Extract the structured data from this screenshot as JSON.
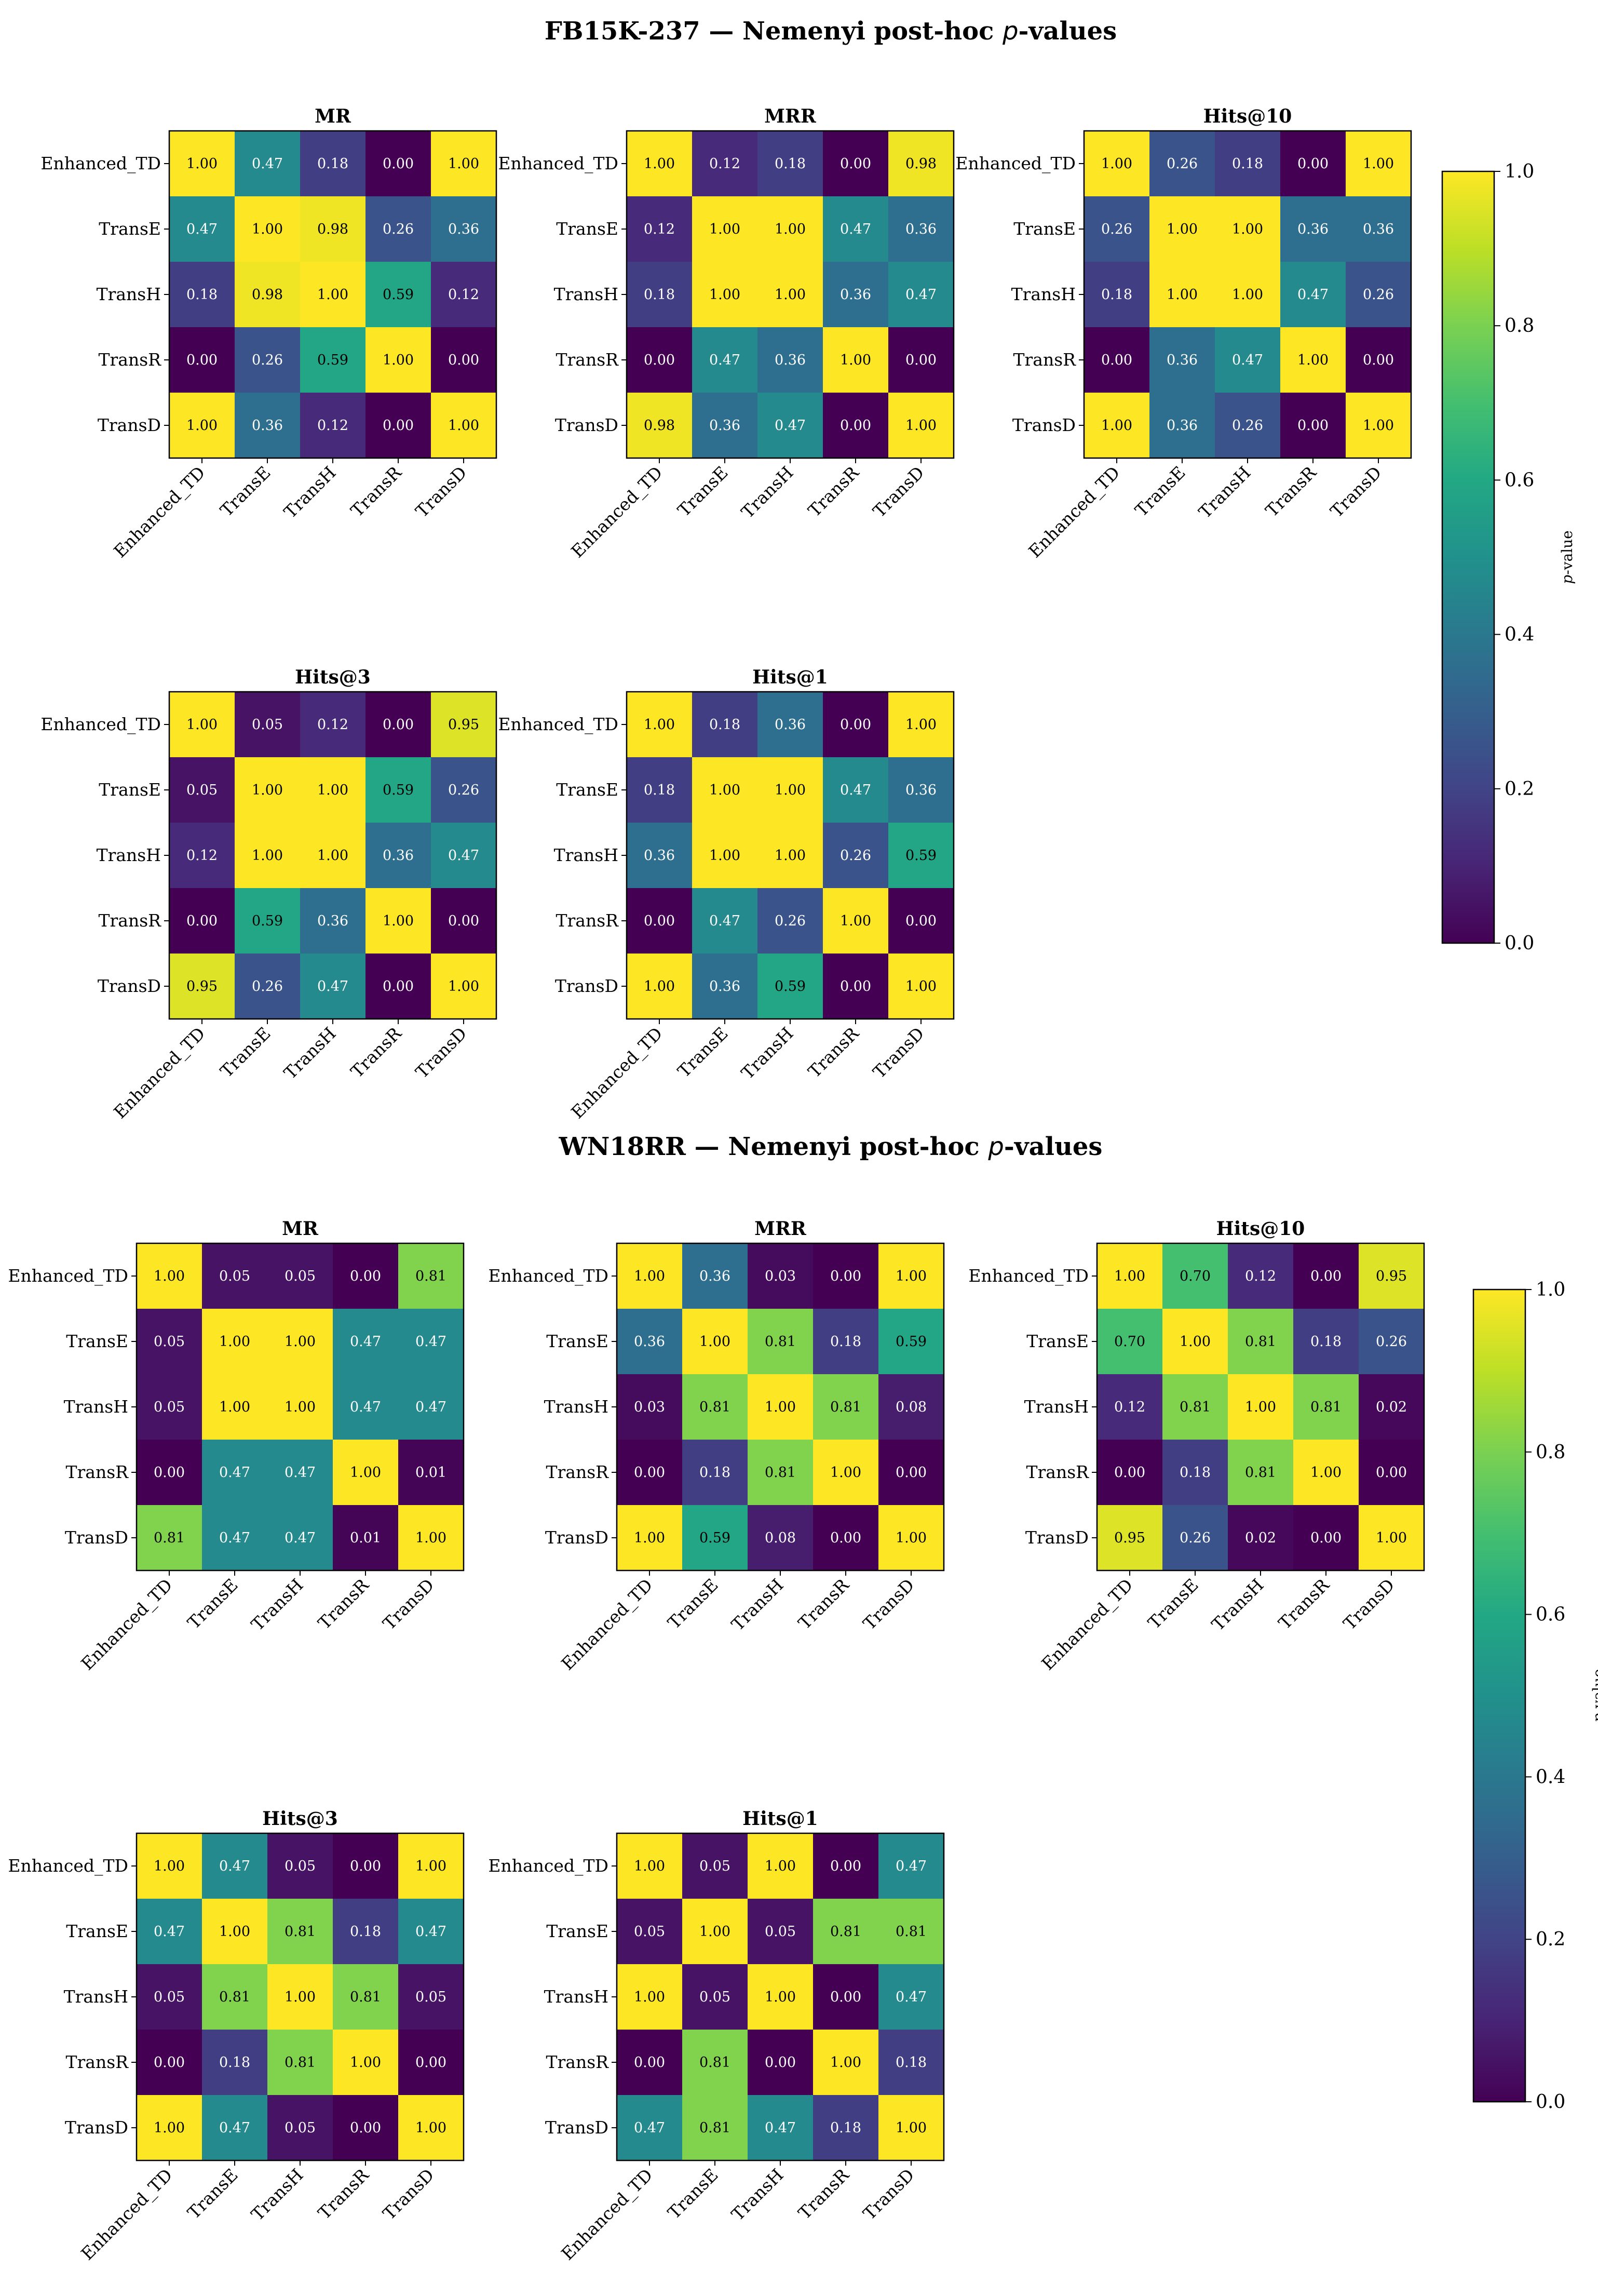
{
  "chart_data": [
    {
      "type": "heatmap",
      "figure_title": "FB15K-237 — Nemenyi post-hoc p-values",
      "value_label": "p-value",
      "value_range": [
        0.0,
        1.0
      ],
      "colorbar_ticks": [
        "0.0",
        "0.2",
        "0.4",
        "0.6",
        "0.8",
        "1.0"
      ],
      "colormap": "viridis",
      "labels": [
        "Enhanced_TD",
        "TransE",
        "TransH",
        "TransR",
        "TransD"
      ],
      "panels": [
        {
          "title": "MR",
          "matrix": [
            [
              1.0,
              0.47,
              0.18,
              0.0,
              1.0
            ],
            [
              0.47,
              1.0,
              0.98,
              0.26,
              0.36
            ],
            [
              0.18,
              0.98,
              1.0,
              0.59,
              0.12
            ],
            [
              0.0,
              0.26,
              0.59,
              1.0,
              0.0
            ],
            [
              1.0,
              0.36,
              0.12,
              0.0,
              1.0
            ]
          ]
        },
        {
          "title": "MRR",
          "matrix": [
            [
              1.0,
              0.12,
              0.18,
              0.0,
              0.98
            ],
            [
              0.12,
              1.0,
              1.0,
              0.47,
              0.36
            ],
            [
              0.18,
              1.0,
              1.0,
              0.36,
              0.47
            ],
            [
              0.0,
              0.47,
              0.36,
              1.0,
              0.0
            ],
            [
              0.98,
              0.36,
              0.47,
              0.0,
              1.0
            ]
          ]
        },
        {
          "title": "Hits@10",
          "matrix": [
            [
              1.0,
              0.26,
              0.18,
              0.0,
              1.0
            ],
            [
              0.26,
              1.0,
              1.0,
              0.36,
              0.36
            ],
            [
              0.18,
              1.0,
              1.0,
              0.47,
              0.26
            ],
            [
              0.0,
              0.36,
              0.47,
              1.0,
              0.0
            ],
            [
              1.0,
              0.36,
              0.26,
              0.0,
              1.0
            ]
          ]
        },
        {
          "title": "Hits@3",
          "matrix": [
            [
              1.0,
              0.05,
              0.12,
              0.0,
              0.95
            ],
            [
              0.05,
              1.0,
              1.0,
              0.59,
              0.26
            ],
            [
              0.12,
              1.0,
              1.0,
              0.36,
              0.47
            ],
            [
              0.0,
              0.59,
              0.36,
              1.0,
              0.0
            ],
            [
              0.95,
              0.26,
              0.47,
              0.0,
              1.0
            ]
          ]
        },
        {
          "title": "Hits@1",
          "matrix": [
            [
              1.0,
              0.18,
              0.36,
              0.0,
              1.0
            ],
            [
              0.18,
              1.0,
              1.0,
              0.47,
              0.36
            ],
            [
              0.36,
              1.0,
              1.0,
              0.26,
              0.59
            ],
            [
              0.0,
              0.47,
              0.26,
              1.0,
              0.0
            ],
            [
              1.0,
              0.36,
              0.59,
              0.0,
              1.0
            ]
          ]
        }
      ]
    },
    {
      "type": "heatmap",
      "figure_title": "WN18RR — Nemenyi post-hoc p-values",
      "value_label": "p-value",
      "value_range": [
        0.0,
        1.0
      ],
      "colorbar_ticks": [
        "0.0",
        "0.2",
        "0.4",
        "0.6",
        "0.8",
        "1.0"
      ],
      "colormap": "viridis",
      "labels": [
        "Enhanced_TD",
        "TransE",
        "TransH",
        "TransR",
        "TransD"
      ],
      "panels": [
        {
          "title": "MR",
          "matrix": [
            [
              1.0,
              0.05,
              0.05,
              0.0,
              0.81
            ],
            [
              0.05,
              1.0,
              1.0,
              0.47,
              0.47
            ],
            [
              0.05,
              1.0,
              1.0,
              0.47,
              0.47
            ],
            [
              0.0,
              0.47,
              0.47,
              1.0,
              0.01
            ],
            [
              0.81,
              0.47,
              0.47,
              0.01,
              1.0
            ]
          ]
        },
        {
          "title": "MRR",
          "matrix": [
            [
              1.0,
              0.36,
              0.03,
              0.0,
              1.0
            ],
            [
              0.36,
              1.0,
              0.81,
              0.18,
              0.59
            ],
            [
              0.03,
              0.81,
              1.0,
              0.81,
              0.08
            ],
            [
              0.0,
              0.18,
              0.81,
              1.0,
              0.0
            ],
            [
              1.0,
              0.59,
              0.08,
              0.0,
              1.0
            ]
          ]
        },
        {
          "title": "Hits@10",
          "matrix": [
            [
              1.0,
              0.7,
              0.12,
              0.0,
              0.95
            ],
            [
              0.7,
              1.0,
              0.81,
              0.18,
              0.26
            ],
            [
              0.12,
              0.81,
              1.0,
              0.81,
              0.02
            ],
            [
              0.0,
              0.18,
              0.81,
              1.0,
              0.0
            ],
            [
              0.95,
              0.26,
              0.02,
              0.0,
              1.0
            ]
          ]
        },
        {
          "title": "Hits@3",
          "matrix": [
            [
              1.0,
              0.47,
              0.05,
              0.0,
              1.0
            ],
            [
              0.47,
              1.0,
              0.81,
              0.18,
              0.47
            ],
            [
              0.05,
              0.81,
              1.0,
              0.81,
              0.05
            ],
            [
              0.0,
              0.18,
              0.81,
              1.0,
              0.0
            ],
            [
              1.0,
              0.47,
              0.05,
              0.0,
              1.0
            ]
          ]
        },
        {
          "title": "Hits@1",
          "matrix": [
            [
              1.0,
              0.05,
              1.0,
              0.0,
              0.47
            ],
            [
              0.05,
              1.0,
              0.05,
              0.81,
              0.81
            ],
            [
              1.0,
              0.05,
              1.0,
              0.0,
              0.47
            ],
            [
              0.0,
              0.81,
              0.0,
              1.0,
              0.18
            ],
            [
              0.47,
              0.81,
              0.47,
              0.18,
              1.0
            ]
          ]
        }
      ]
    }
  ]
}
